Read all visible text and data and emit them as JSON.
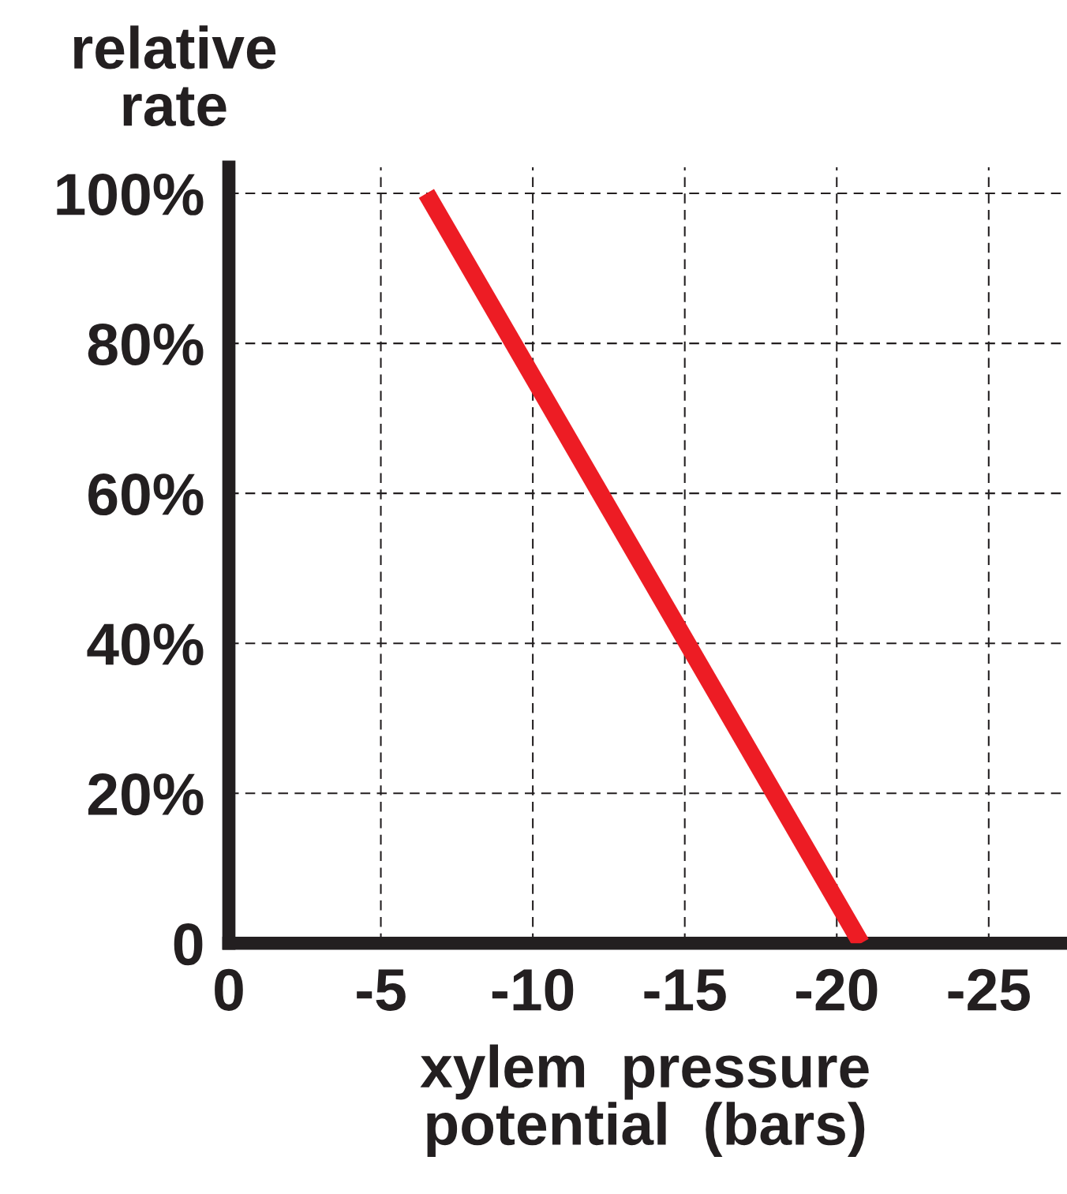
{
  "chart_data": {
    "type": "line",
    "xlabel": "xylem  pressure\npotential  (bars)",
    "ylabel": "relative\nrate",
    "x": [
      -6.5,
      -20.8
    ],
    "series": [
      {
        "color": "#ed1c24",
        "values": [
          100,
          0
        ]
      }
    ],
    "xlim": [
      0,
      -27.4
    ],
    "xticks": [
      0,
      -5,
      -10,
      -15,
      -20,
      -25
    ],
    "ylim": [
      0,
      103.5
    ],
    "yticks": [
      {
        "value": 0,
        "label": "0"
      },
      {
        "value": 20,
        "label": "20%"
      },
      {
        "value": 40,
        "label": "40%"
      },
      {
        "value": 60,
        "label": "60%"
      },
      {
        "value": 80,
        "label": "80%"
      },
      {
        "value": 100,
        "label": "100%"
      }
    ],
    "grid": true,
    "line_style": "solid",
    "marker": "none"
  }
}
